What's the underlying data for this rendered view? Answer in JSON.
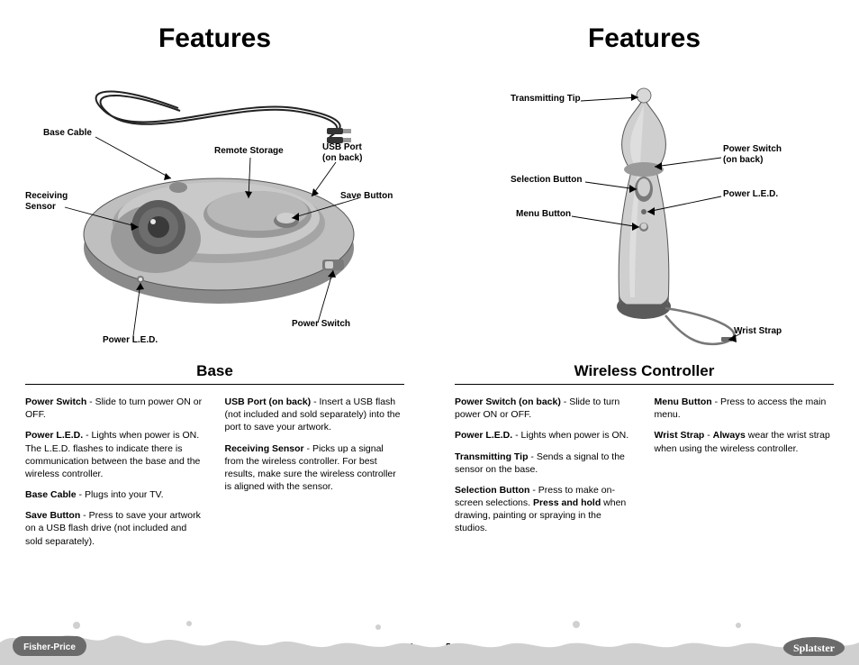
{
  "colors": {
    "device_body": "#bfbfbf",
    "device_shadow": "#8a8a8a",
    "device_highlight": "#e8e8e8",
    "device_dark": "#5b5b5b",
    "cable": "#222222",
    "splatter": "#d0d0d0",
    "logo_bg": "#6b6b6b",
    "rule": "#000000"
  },
  "left": {
    "heading": "Features",
    "subheading": "Base",
    "page_number": "4",
    "callouts": {
      "base_cable": "Base Cable",
      "remote_storage": "Remote Storage",
      "usb_port_1": "USB Port",
      "usb_port_2": "(on back)",
      "save_button": "Save Button",
      "receiving_sensor_1": "Receiving",
      "receiving_sensor_2": "Sensor",
      "power_switch": "Power Switch",
      "power_led": "Power L.E.D."
    },
    "features_col1": [
      {
        "label": "Power Switch",
        "text": " - Slide to turn power ON or OFF."
      },
      {
        "label": "Power L.E.D.",
        "text": " - Lights when power is ON. The L.E.D. flashes to indicate there is communication between the base and the wireless controller."
      },
      {
        "label": "Base Cable",
        "text": " - Plugs into your TV."
      },
      {
        "label": "Save Button",
        "text": " - Press to save your artwork on a USB flash drive (not included and sold separately)."
      }
    ],
    "features_col2": [
      {
        "label": "USB Port (on back)",
        "text": " - Insert a USB flash (not included and sold separately) into the port to save your artwork."
      },
      {
        "label": "Receiving Sensor",
        "text": " - Picks up a signal from the wireless controller. For best results, make sure the wireless controller is aligned with the sensor."
      }
    ]
  },
  "right": {
    "heading": "Features",
    "subheading": "Wireless Controller",
    "page_number": "5",
    "callouts": {
      "transmitting_tip": "Transmitting Tip",
      "selection_button": "Selection Button",
      "menu_button": "Menu Button",
      "power_switch_1": "Power Switch",
      "power_switch_2": "(on back)",
      "power_led": "Power L.E.D.",
      "wrist_strap": "Wrist Strap"
    },
    "features_col1": [
      {
        "label": "Power Switch (on back)",
        "text": " - Slide to turn power ON or OFF."
      },
      {
        "label": "Power L.E.D.",
        "text": " - Lights when power is ON."
      },
      {
        "label": "Transmitting Tip",
        "text": " - Sends a signal to the sensor on the base."
      },
      {
        "label": "Selection Button",
        "text": " - Press to make on-screen selections. ",
        "bold2": "Press and hold",
        "text2": " when drawing, painting or spraying in the studios."
      }
    ],
    "features_col2": [
      {
        "label": "Menu Button",
        "text": " - Press to access the main menu."
      },
      {
        "label": "Wrist Strap",
        "text": " - ",
        "bold2": "Always",
        "text2": " wear the wrist strap when using the wireless controller."
      }
    ]
  },
  "logos": {
    "fisher_price": "Fisher-Price",
    "splatster": "Splatster"
  }
}
